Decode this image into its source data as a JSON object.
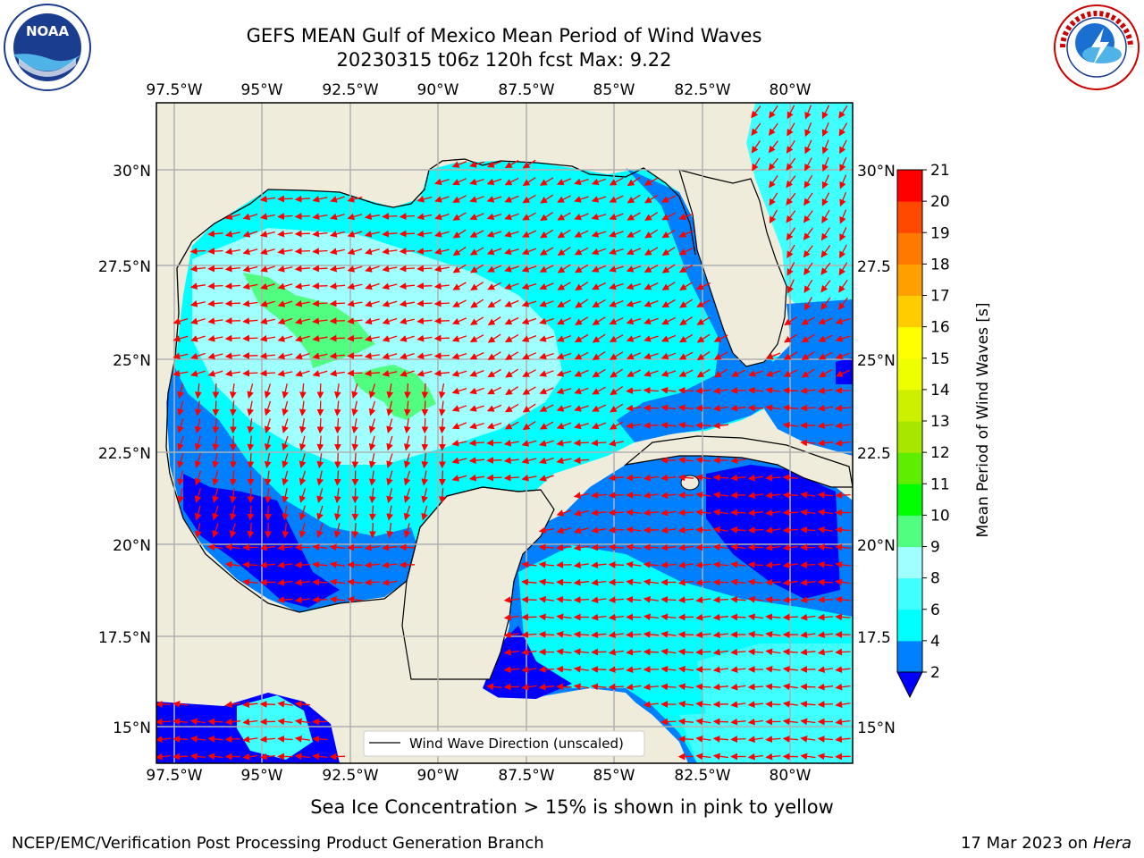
{
  "title": {
    "line1": "GEFS MEAN Gulf of Mexico Mean Period of Wind Waves",
    "line2": "20230315 t06z 120h fcst   Max: 9.22"
  },
  "map": {
    "lon_labels": [
      "97.5°W",
      "95°W",
      "92.5°W",
      "90°W",
      "87.5°W",
      "85°W",
      "82.5°W",
      "80°W"
    ],
    "lat_labels_left": [
      "30°N",
      "27.5°N",
      "25°N",
      "22.5°N",
      "20°N",
      "17.5°N",
      "15°N"
    ],
    "lat_labels_right": [
      "30°N",
      "27.5",
      "25°N",
      "22.5",
      "20°N",
      "17.5",
      "15°N"
    ],
    "legend_label": "Wind Wave Direction (unscaled)",
    "colors": {
      "land": "#efecdc",
      "grid": "#b0b0b0",
      "arrow": "#ff0000"
    }
  },
  "colorbar": {
    "label": "Mean Period of Wind Waves [s]",
    "ticks": [
      "2",
      "4",
      "6",
      "8",
      "9",
      "10",
      "11",
      "12",
      "13",
      "14",
      "15",
      "16",
      "17",
      "18",
      "19",
      "20",
      "21"
    ],
    "colors": [
      "#0000ff",
      "#0080ff",
      "#00ffff",
      "#40ffff",
      "#a0ffff",
      "#50ff80",
      "#00ff00",
      "#60ee00",
      "#a8e600",
      "#ccf000",
      "#eeff00",
      "#ffff00",
      "#ffcc00",
      "#ffa000",
      "#ff7800",
      "#ff4800",
      "#ff0000"
    ]
  },
  "notes": {
    "sea_ice": "Sea Ice Concentration > 15% is shown in pink to yellow"
  },
  "footer": {
    "left": "NCEP/EMC/Verification Post Processing Product Generation Branch",
    "right_date": "17 Mar 2023 on",
    "right_host": "Hera"
  },
  "logos": {
    "noaa_text": "NOAA",
    "nws_text": "NATIONAL WEATHER SERVICE"
  }
}
